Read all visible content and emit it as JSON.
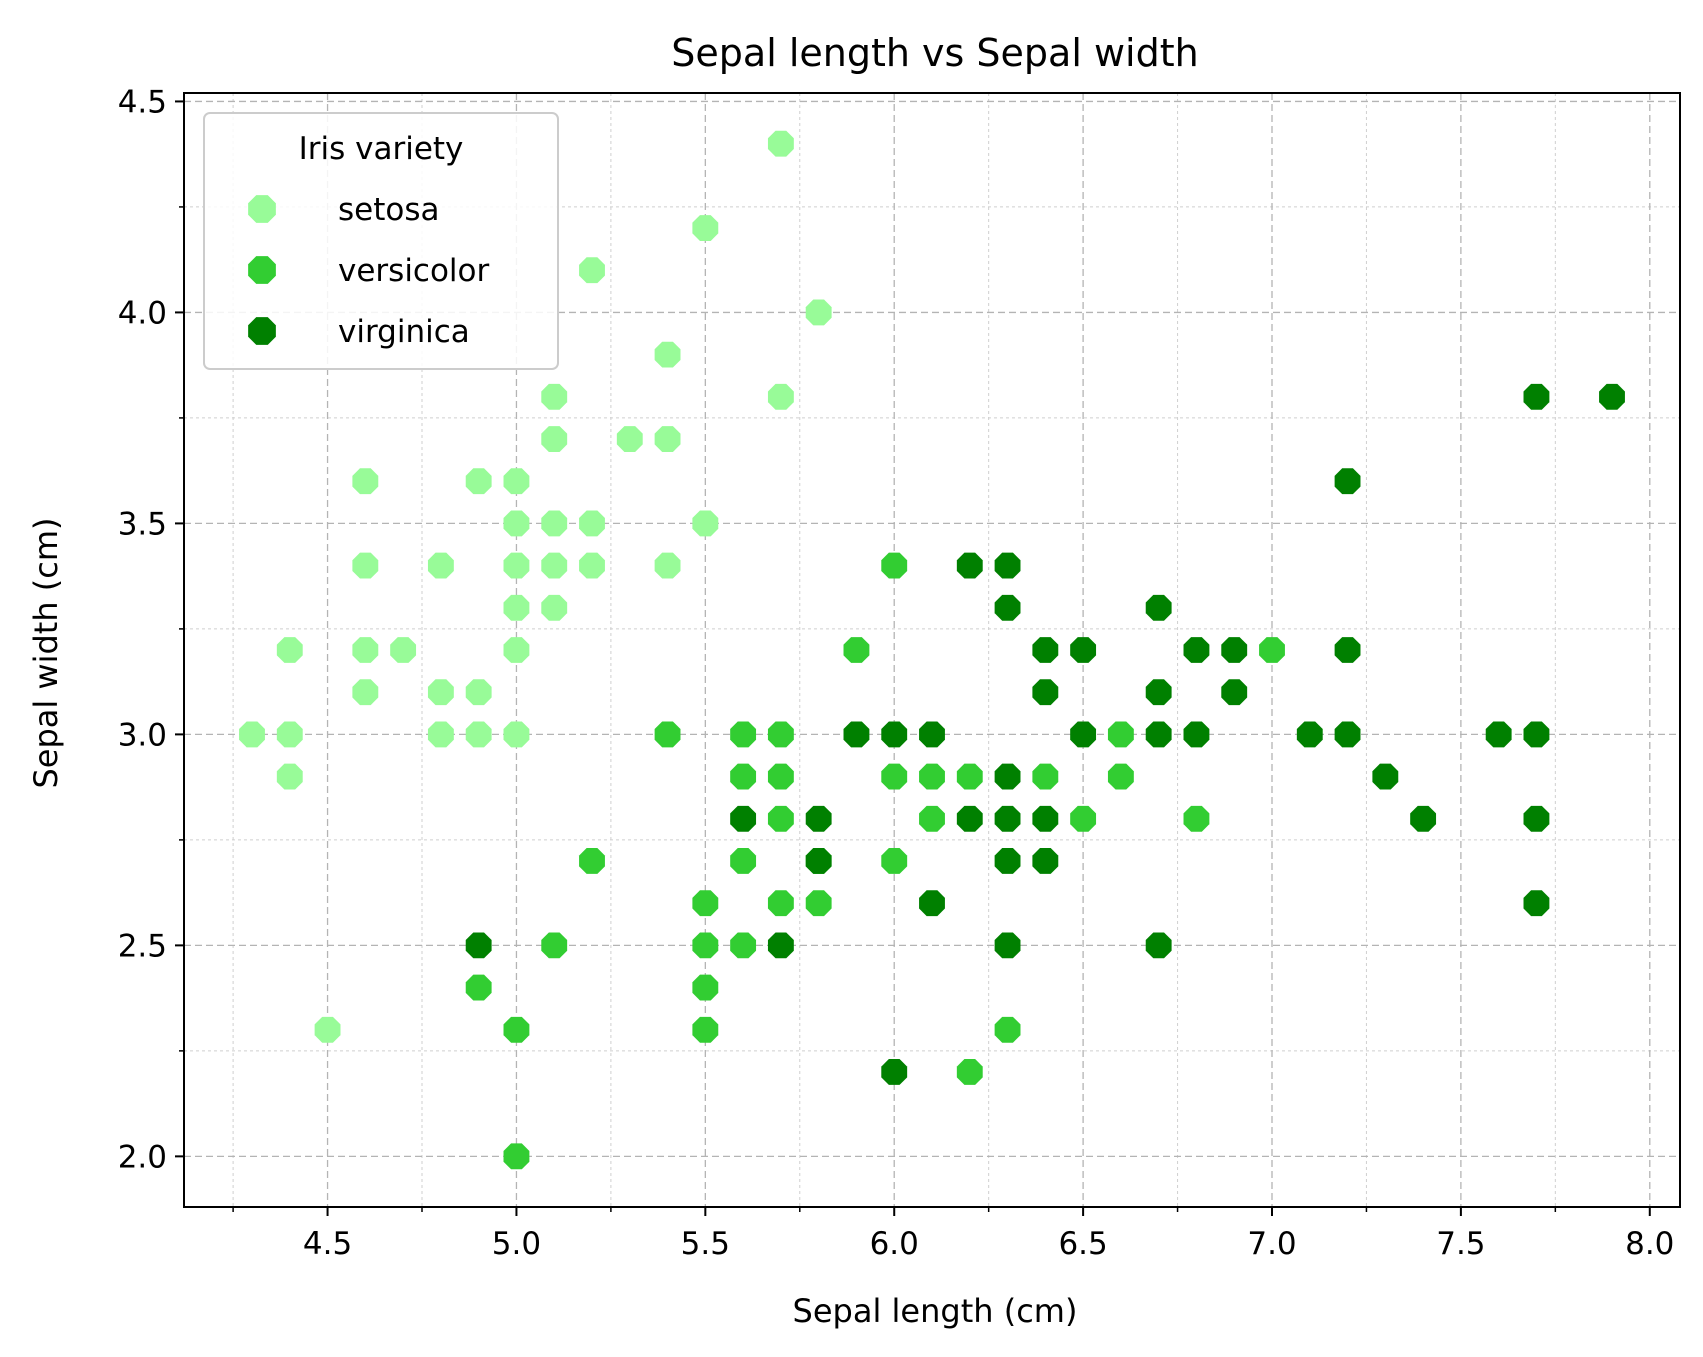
{
  "chart_data": {
    "type": "scatter",
    "title": "Sepal length vs Sepal width",
    "xlabel": "Sepal length (cm)",
    "ylabel": "Sepal width (cm)",
    "xlim": [
      4.12,
      8.08
    ],
    "ylim": [
      1.88,
      4.52
    ],
    "x_ticks": [
      "4.5",
      "5.0",
      "5.5",
      "6.0",
      "6.5",
      "7.0",
      "7.5",
      "8.0"
    ],
    "y_ticks": [
      "2.0",
      "2.5",
      "3.0",
      "3.5",
      "4.0",
      "4.5"
    ],
    "grid": true,
    "legend": {
      "title": "Iris variety",
      "placement": "top-left"
    },
    "series": [
      {
        "name": "setosa",
        "color": "#98fb98",
        "points": [
          [
            4.3,
            3.0
          ],
          [
            4.4,
            3.2
          ],
          [
            4.4,
            3.0
          ],
          [
            4.4,
            2.9
          ],
          [
            4.5,
            2.3
          ],
          [
            4.6,
            3.6
          ],
          [
            4.6,
            3.4
          ],
          [
            4.6,
            3.2
          ],
          [
            4.6,
            3.1
          ],
          [
            4.7,
            3.2
          ],
          [
            4.8,
            3.4
          ],
          [
            4.8,
            3.1
          ],
          [
            4.8,
            3.0
          ],
          [
            4.9,
            3.6
          ],
          [
            4.9,
            3.1
          ],
          [
            4.9,
            3.0
          ],
          [
            5.0,
            3.6
          ],
          [
            5.0,
            3.5
          ],
          [
            5.0,
            3.4
          ],
          [
            5.0,
            3.3
          ],
          [
            5.0,
            3.2
          ],
          [
            5.0,
            3.0
          ],
          [
            5.1,
            3.8
          ],
          [
            5.1,
            3.7
          ],
          [
            5.1,
            3.5
          ],
          [
            5.1,
            3.4
          ],
          [
            5.1,
            3.3
          ],
          [
            5.2,
            4.1
          ],
          [
            5.2,
            3.5
          ],
          [
            5.2,
            3.4
          ],
          [
            5.3,
            3.7
          ],
          [
            5.4,
            3.9
          ],
          [
            5.4,
            3.7
          ],
          [
            5.4,
            3.4
          ],
          [
            5.5,
            4.2
          ],
          [
            5.5,
            3.5
          ],
          [
            5.7,
            4.4
          ],
          [
            5.7,
            3.8
          ],
          [
            5.8,
            4.0
          ]
        ]
      },
      {
        "name": "versicolor",
        "color": "#32cd32",
        "points": [
          [
            4.9,
            2.4
          ],
          [
            5.0,
            2.3
          ],
          [
            5.0,
            2.0
          ],
          [
            5.1,
            2.5
          ],
          [
            5.2,
            2.7
          ],
          [
            5.4,
            3.0
          ],
          [
            5.5,
            2.6
          ],
          [
            5.5,
            2.5
          ],
          [
            5.5,
            2.4
          ],
          [
            5.5,
            2.3
          ],
          [
            5.6,
            3.0
          ],
          [
            5.6,
            2.9
          ],
          [
            5.6,
            2.7
          ],
          [
            5.6,
            2.5
          ],
          [
            5.7,
            3.0
          ],
          [
            5.7,
            2.9
          ],
          [
            5.7,
            2.8
          ],
          [
            5.7,
            2.6
          ],
          [
            5.8,
            2.7
          ],
          [
            5.8,
            2.6
          ],
          [
            5.9,
            3.2
          ],
          [
            6.0,
            3.4
          ],
          [
            6.0,
            2.9
          ],
          [
            6.0,
            2.7
          ],
          [
            6.1,
            2.9
          ],
          [
            6.1,
            2.8
          ],
          [
            6.2,
            2.9
          ],
          [
            6.2,
            2.2
          ],
          [
            6.3,
            2.3
          ],
          [
            6.4,
            2.9
          ],
          [
            6.5,
            2.8
          ],
          [
            6.6,
            3.0
          ],
          [
            6.6,
            2.9
          ],
          [
            6.8,
            2.8
          ],
          [
            7.0,
            3.2
          ]
        ]
      },
      {
        "name": "virginica",
        "color": "#008000",
        "points": [
          [
            4.9,
            2.5
          ],
          [
            5.6,
            2.8
          ],
          [
            5.7,
            2.5
          ],
          [
            5.8,
            2.8
          ],
          [
            5.8,
            2.7
          ],
          [
            5.9,
            3.0
          ],
          [
            6.0,
            3.0
          ],
          [
            6.0,
            2.2
          ],
          [
            6.1,
            3.0
          ],
          [
            6.1,
            2.6
          ],
          [
            6.2,
            3.4
          ],
          [
            6.2,
            2.8
          ],
          [
            6.3,
            3.4
          ],
          [
            6.3,
            3.3
          ],
          [
            6.3,
            2.9
          ],
          [
            6.3,
            2.8
          ],
          [
            6.3,
            2.7
          ],
          [
            6.3,
            2.5
          ],
          [
            6.4,
            3.2
          ],
          [
            6.4,
            3.1
          ],
          [
            6.4,
            2.8
          ],
          [
            6.4,
            2.7
          ],
          [
            6.5,
            3.2
          ],
          [
            6.5,
            3.0
          ],
          [
            6.7,
            3.3
          ],
          [
            6.7,
            3.1
          ],
          [
            6.7,
            3.0
          ],
          [
            6.7,
            2.5
          ],
          [
            6.8,
            3.2
          ],
          [
            6.8,
            3.0
          ],
          [
            6.9,
            3.2
          ],
          [
            6.9,
            3.1
          ],
          [
            7.1,
            3.0
          ],
          [
            7.2,
            3.6
          ],
          [
            7.2,
            3.2
          ],
          [
            7.2,
            3.0
          ],
          [
            7.3,
            2.9
          ],
          [
            7.4,
            2.8
          ],
          [
            7.6,
            3.0
          ],
          [
            7.7,
            3.8
          ],
          [
            7.7,
            3.0
          ],
          [
            7.7,
            2.8
          ],
          [
            7.7,
            2.6
          ],
          [
            7.9,
            3.8
          ]
        ]
      }
    ]
  }
}
